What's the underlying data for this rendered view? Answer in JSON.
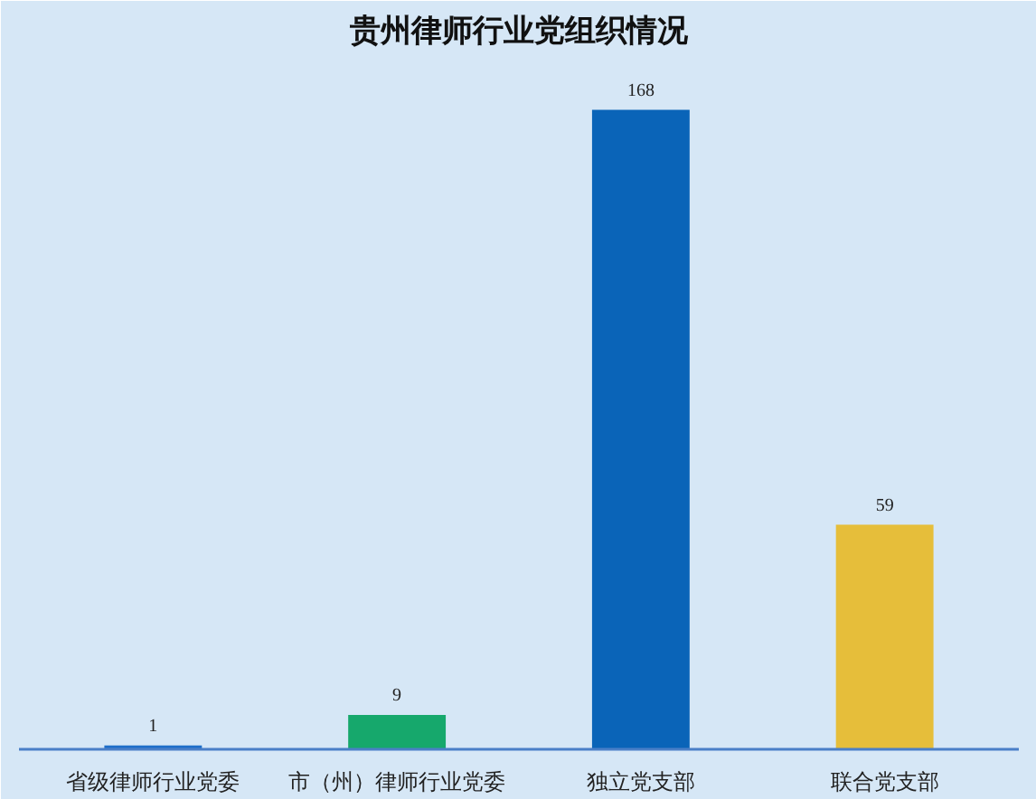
{
  "chart_data": {
    "type": "bar",
    "title": "贵州律师行业党组织情况",
    "categories": [
      "省级律师行业党委",
      "市（州）律师行业党委",
      "独立党支部",
      "联合党支部"
    ],
    "values": [
      1,
      9,
      168,
      59
    ],
    "colors": [
      "#1f6fc9",
      "#16a86c",
      "#0a64b8",
      "#e6be3a"
    ],
    "data_labels": true,
    "grid": false
  }
}
